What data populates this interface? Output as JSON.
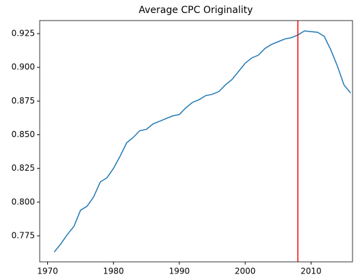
{
  "chart_data": {
    "type": "line",
    "title": "Average CPC Originality",
    "x": [
      1971,
      1972,
      1973,
      1974,
      1975,
      1976,
      1977,
      1978,
      1979,
      1980,
      1981,
      1982,
      1983,
      1984,
      1985,
      1986,
      1987,
      1988,
      1989,
      1990,
      1991,
      1992,
      1993,
      1994,
      1995,
      1996,
      1997,
      1998,
      1999,
      2000,
      2001,
      2002,
      2003,
      2004,
      2005,
      2006,
      2007,
      2008,
      2009,
      2010,
      2011,
      2012,
      2013,
      2014,
      2015,
      2016
    ],
    "series": [
      {
        "color": "#1f77b4",
        "values": [
          0.763,
          0.769,
          0.776,
          0.782,
          0.794,
          0.797,
          0.804,
          0.815,
          0.818,
          0.825,
          0.834,
          0.844,
          0.848,
          0.853,
          0.854,
          0.858,
          0.86,
          0.862,
          0.864,
          0.865,
          0.87,
          0.874,
          0.876,
          0.879,
          0.88,
          0.882,
          0.887,
          0.891,
          0.897,
          0.903,
          0.907,
          0.909,
          0.914,
          0.917,
          0.919,
          0.921,
          0.922,
          0.924,
          0.927,
          0.9265,
          0.926,
          0.923,
          0.913,
          0.901,
          0.887,
          0.881
        ]
      }
    ],
    "vline": {
      "x": 2008,
      "color": "#ff0000"
    },
    "xlim": [
      1968.8,
      2016.3
    ],
    "ylim": [
      0.7557,
      0.9347
    ],
    "xticks": [
      1970,
      1980,
      1990,
      2000,
      2010
    ],
    "yticks": [
      0.775,
      {
        "value": 0.8,
        "label": "0.800"
      },
      0.825,
      {
        "value": 0.85,
        "label": "0.850"
      },
      0.875,
      {
        "value": 0.9,
        "label": "0.900"
      },
      0.925
    ]
  }
}
